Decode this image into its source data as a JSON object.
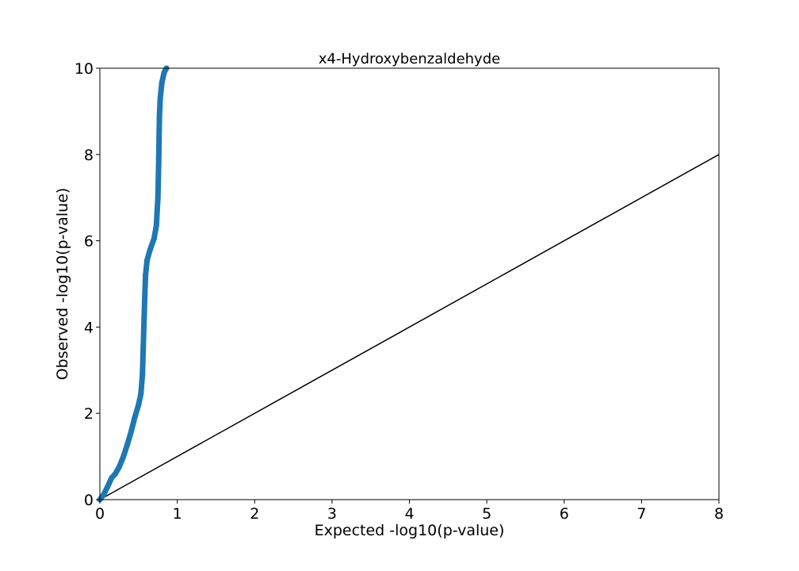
{
  "chart_data": {
    "type": "scatter",
    "title": "x4-Hydroxybenzaldehyde",
    "xlabel": "Expected -log10(p-value)",
    "ylabel": "Observed -log10(p-value)",
    "xlim": [
      0,
      8
    ],
    "ylim": [
      0,
      10
    ],
    "xticks": [
      "0",
      "1",
      "2",
      "3",
      "4",
      "5",
      "6",
      "7",
      "8"
    ],
    "yticks": [
      "0",
      "2",
      "4",
      "6",
      "8",
      "10"
    ],
    "grid": false,
    "reference_line": {
      "type": "line",
      "color": "#000000",
      "from": [
        0,
        0
      ],
      "to": [
        8,
        8
      ]
    },
    "series": [
      {
        "color": "#1f77b4",
        "points": [
          [
            0.0,
            0.0
          ],
          [
            0.05,
            0.12
          ],
          [
            0.1,
            0.3
          ],
          [
            0.15,
            0.5
          ],
          [
            0.2,
            0.6
          ],
          [
            0.25,
            0.76
          ],
          [
            0.3,
            0.98
          ],
          [
            0.35,
            1.25
          ],
          [
            0.4,
            1.55
          ],
          [
            0.45,
            1.9
          ],
          [
            0.5,
            2.2
          ],
          [
            0.53,
            2.45
          ],
          [
            0.55,
            2.9
          ],
          [
            0.56,
            3.5
          ],
          [
            0.57,
            4.1
          ],
          [
            0.58,
            4.7
          ],
          [
            0.59,
            5.2
          ],
          [
            0.61,
            5.55
          ],
          [
            0.65,
            5.8
          ],
          [
            0.7,
            6.05
          ],
          [
            0.73,
            6.35
          ],
          [
            0.75,
            7.0
          ],
          [
            0.76,
            7.8
          ],
          [
            0.765,
            8.4
          ],
          [
            0.77,
            8.9
          ],
          [
            0.78,
            9.3
          ],
          [
            0.8,
            9.65
          ],
          [
            0.83,
            9.9
          ],
          [
            0.86,
            10.0
          ]
        ]
      }
    ]
  }
}
